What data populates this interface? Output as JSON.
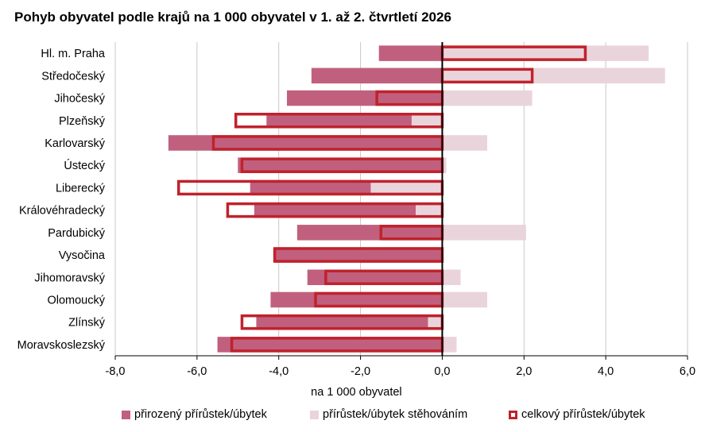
{
  "chart_data": {
    "type": "bar",
    "orientation": "horizontal",
    "title": "Pohyb obyvatel podle krajů na 1 000 obyvatel v 1. až 2. čtvrtletí 2026",
    "xlabel": "na 1 000 obyvatel",
    "ylabel": "",
    "xlim": [
      -8,
      6
    ],
    "xticks": [
      -8,
      -6,
      -4,
      -2,
      0,
      2,
      4,
      6
    ],
    "xtick_labels": [
      "-8,0",
      "-6,0",
      "-4,0",
      "-2,0",
      "0,0",
      "2,0",
      "4,0",
      "6,0"
    ],
    "grid": true,
    "legend_position": "bottom",
    "categories": [
      "Hl. m. Praha",
      "Středočeský",
      "Jihočeský",
      "Plzeňský",
      "Karlovarský",
      "Ústecký",
      "Liberecký",
      "Královéhradecký",
      "Pardubický",
      "Vysočina",
      "Jihomoravský",
      "Olomoucký",
      "Zlínský",
      "Moravskoslezský"
    ],
    "series": [
      {
        "name": "přirozený přírůstek/úbytek",
        "color": "#c0607e",
        "values": [
          -1.55,
          -3.2,
          -3.8,
          -4.3,
          -6.7,
          -5.0,
          -4.7,
          -4.6,
          -3.55,
          -4.1,
          -3.3,
          -4.2,
          -4.55,
          -5.5
        ]
      },
      {
        "name": "přírůstek/úbytek stěhováním",
        "color": "#ead4dc",
        "values": [
          5.05,
          5.45,
          2.2,
          -0.75,
          1.1,
          0.1,
          -1.75,
          -0.65,
          2.05,
          0.0,
          0.45,
          1.1,
          -0.35,
          0.35
        ]
      },
      {
        "name": "celkový přírůstek/úbytek",
        "color": "#c0222c",
        "values": [
          3.5,
          2.2,
          -1.6,
          -5.05,
          -5.6,
          -4.9,
          -6.45,
          -5.25,
          -1.5,
          -4.1,
          -2.85,
          -3.1,
          -4.9,
          -5.15
        ]
      }
    ]
  }
}
